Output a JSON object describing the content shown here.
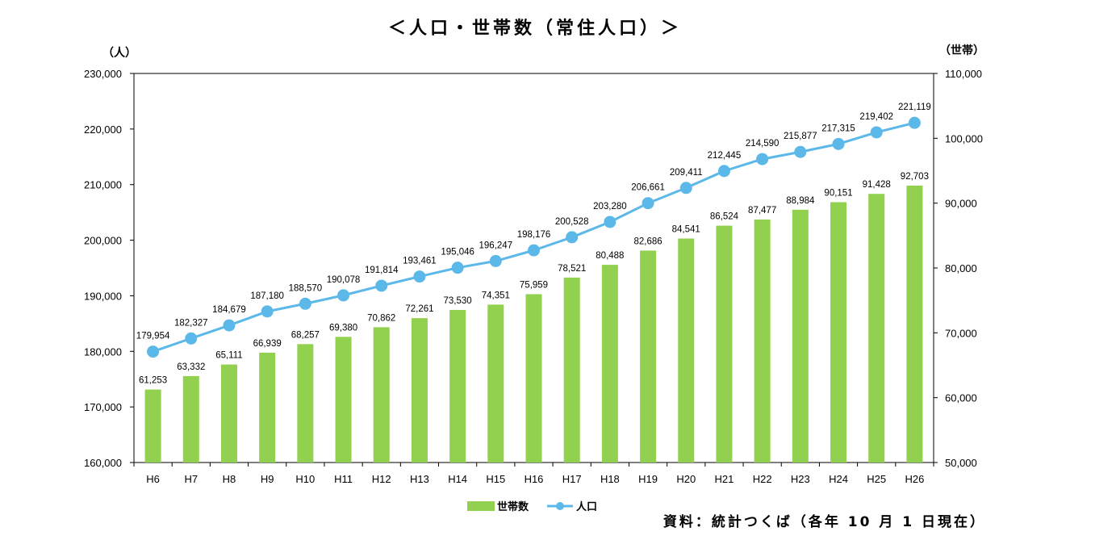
{
  "chart_data": {
    "type": "bar+line",
    "title": "＜人口・世帯数（常住人口）＞",
    "categories": [
      "H6",
      "H7",
      "H8",
      "H9",
      "H10",
      "H11",
      "H12",
      "H13",
      "H14",
      "H15",
      "H16",
      "H17",
      "H18",
      "H19",
      "H20",
      "H21",
      "H22",
      "H23",
      "H24",
      "H25",
      "H26"
    ],
    "series": [
      {
        "name": "世帯数",
        "type": "bar",
        "axis": "right",
        "color": "#92d050",
        "values": [
          61253,
          63332,
          65111,
          66939,
          68257,
          69380,
          70862,
          72261,
          73530,
          74351,
          75959,
          78521,
          80488,
          82686,
          84541,
          86524,
          87477,
          88984,
          90151,
          91428,
          92703
        ],
        "labels": [
          "61,253",
          "63,332",
          "65,111",
          "66,939",
          "68,257",
          "69,380",
          "70,862",
          "72,261",
          "73,530",
          "74,351",
          "75,959",
          "78,521",
          "80,488",
          "82,686",
          "84,541",
          "86,524",
          "87,477",
          "88,984",
          "90,151",
          "91,428",
          "92,703"
        ]
      },
      {
        "name": "人口",
        "type": "line",
        "axis": "left",
        "color": "#5bb8e8",
        "values": [
          179954,
          182327,
          184679,
          187180,
          188570,
          190078,
          191814,
          193461,
          195046,
          196247,
          198176,
          200528,
          203280,
          206661,
          209411,
          212445,
          214590,
          215877,
          217315,
          219402,
          221119
        ],
        "labels": [
          "179,954",
          "182,327",
          "184,679",
          "187,180",
          "188,570",
          "190,078",
          "191,814",
          "193,461",
          "195,046",
          "196,247",
          "198,176",
          "200,528",
          "203,280",
          "206,661",
          "209,411",
          "212,445",
          "214,590",
          "215,877",
          "217,315",
          "219,402",
          "221,119"
        ]
      }
    ],
    "y_left": {
      "label": "（人）",
      "range": [
        160000,
        230000
      ],
      "ticks": [
        160000,
        170000,
        180000,
        190000,
        200000,
        210000,
        220000,
        230000
      ],
      "tick_labels": [
        "160,000",
        "170,000",
        "180,000",
        "190,000",
        "200,000",
        "210,000",
        "220,000",
        "230,000"
      ]
    },
    "y_right": {
      "label": "（世帯）",
      "range": [
        50000,
        110000
      ],
      "ticks": [
        50000,
        60000,
        70000,
        80000,
        90000,
        100000,
        110000
      ],
      "tick_labels": [
        "50,000",
        "60,000",
        "70,000",
        "80,000",
        "90,000",
        "100,000",
        "110,000"
      ]
    },
    "grid": false,
    "legend": {
      "position": "bottom-center",
      "entries": [
        "世帯数",
        "人口"
      ]
    },
    "source": "資料：統計つくば（各年 10 月 1 日現在）"
  }
}
